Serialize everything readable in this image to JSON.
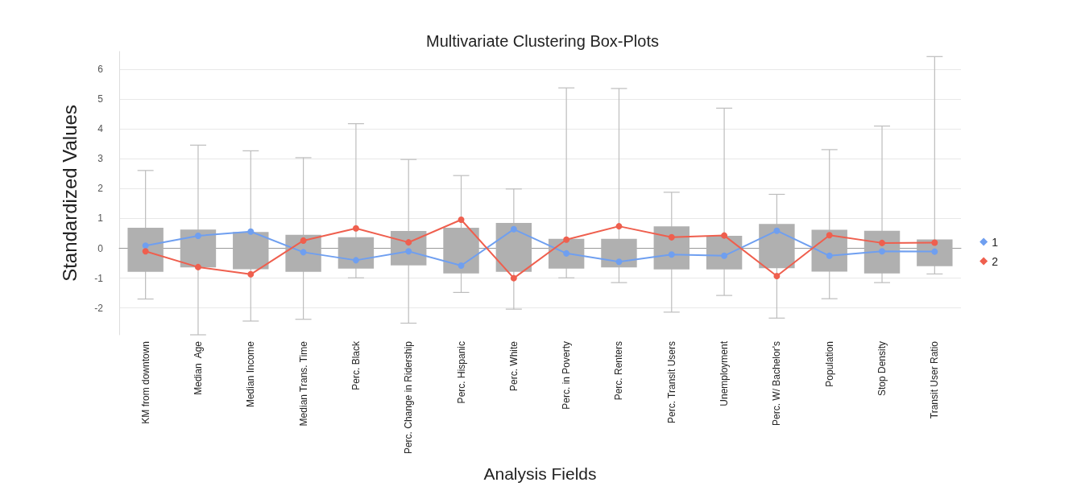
{
  "chart_data": {
    "type": "box",
    "title": "Multivariate Clustering Box-Plots",
    "xlabel": "Analysis Fields",
    "ylabel": "Standardized Values",
    "categories": [
      "KM from downtown",
      "Median  Age",
      "Median Income",
      "Median Trans. Time",
      "Perc. Black",
      "Perc. Change in Ridership",
      "Perc. Hispanic",
      "Perc. White",
      "Perc. in Poverty",
      "Perc. Renters",
      "Perc. Transit Users",
      "Unemployment",
      "Perc. W/ Bachelor's",
      "Population",
      "Stop Density",
      "Transit User Ratio"
    ],
    "series": [
      {
        "color": "#b0b0b0",
        "boxes": [
          {
            "low": -1.7,
            "q1": -0.79,
            "q3": 0.69,
            "high": 2.61
          },
          {
            "low": -2.9,
            "q1": -0.64,
            "q3": 0.63,
            "high": 3.46
          },
          {
            "low": -2.44,
            "q1": -0.7,
            "q3": 0.55,
            "high": 3.27
          },
          {
            "low": -2.38,
            "q1": -0.79,
            "q3": 0.45,
            "high": 3.04
          },
          {
            "low": -0.99,
            "q1": -0.68,
            "q3": 0.37,
            "high": 4.18
          },
          {
            "low": -2.51,
            "q1": -0.57,
            "q3": 0.58,
            "high": 2.98
          },
          {
            "low": -1.48,
            "q1": -0.84,
            "q3": 0.69,
            "high": 2.44
          },
          {
            "low": -2.04,
            "q1": -0.79,
            "q3": 0.85,
            "high": 1.99
          },
          {
            "low": -0.99,
            "q1": -0.68,
            "q3": 0.32,
            "high": 5.38
          },
          {
            "low": -1.15,
            "q1": -0.64,
            "q3": 0.32,
            "high": 5.36
          },
          {
            "low": -2.14,
            "q1": -0.71,
            "q3": 0.74,
            "high": 1.88
          },
          {
            "low": -1.58,
            "q1": -0.71,
            "q3": 0.42,
            "high": 4.7
          },
          {
            "low": -2.34,
            "q1": -0.67,
            "q3": 0.82,
            "high": 1.81
          },
          {
            "low": -1.69,
            "q1": -0.78,
            "q3": 0.62,
            "high": 3.31
          },
          {
            "low": -1.15,
            "q1": -0.84,
            "q3": 0.59,
            "high": 4.1
          },
          {
            "low": -0.86,
            "q1": -0.6,
            "q3": 0.3,
            "high": 6.43
          }
        ]
      },
      {
        "name": "1",
        "type": "line",
        "color": "#6f9ff0",
        "values": [
          0.09,
          0.42,
          0.56,
          -0.13,
          -0.4,
          -0.1,
          -0.58,
          0.64,
          -0.17,
          -0.45,
          -0.21,
          -0.25,
          0.59,
          -0.25,
          -0.1,
          -0.11
        ]
      },
      {
        "name": "2",
        "type": "line",
        "color": "#ef5f4e",
        "values": [
          -0.1,
          -0.63,
          -0.87,
          0.26,
          0.67,
          0.2,
          0.96,
          -1.0,
          0.29,
          0.74,
          0.37,
          0.43,
          -0.93,
          0.44,
          0.18,
          0.19
        ]
      }
    ],
    "ylim": [
      -2.9,
      6.6
    ],
    "yticks": [
      -2,
      -1,
      0,
      1,
      2,
      3,
      4,
      5,
      6
    ],
    "grid": "y",
    "legend": "right",
    "marker": "circle",
    "line_style": "solid"
  }
}
